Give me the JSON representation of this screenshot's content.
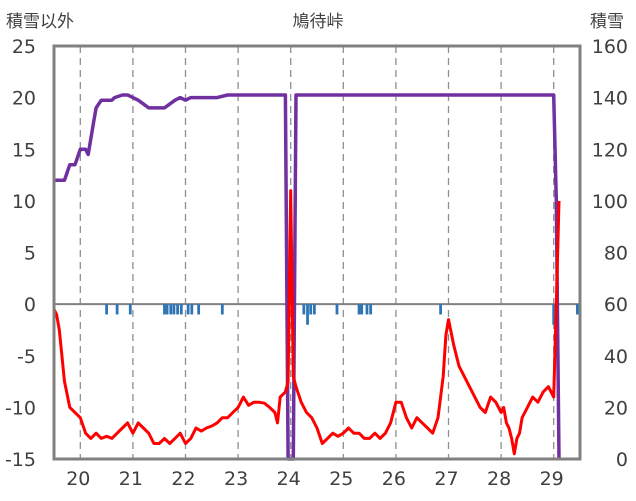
{
  "chart_data": {
    "type": "line",
    "title": "鳩待峠",
    "ylabel_left": "積雪以外",
    "ylabel_right": "積雪",
    "xlim": [
      19.5,
      29.5
    ],
    "ylim_left": [
      -15,
      25
    ],
    "ylim_right": [
      0,
      160
    ],
    "x_ticks": [
      20,
      21,
      22,
      23,
      24,
      25,
      26,
      27,
      28,
      29
    ],
    "y_ticks_left": [
      25,
      20,
      15,
      10,
      5,
      0,
      -5,
      -10,
      -15
    ],
    "y_ticks_right": [
      160,
      140,
      120,
      100,
      80,
      60,
      40,
      20,
      0
    ],
    "grid": "dashed vertical",
    "colors": {
      "snow_depth": "#7030A0",
      "temperature": "#FF0000",
      "precipitation": "#2E75B6",
      "frame": "#808080"
    },
    "series": [
      {
        "axis": "right",
        "color": "#7030A0",
        "x": [
          19.5,
          19.7,
          19.8,
          19.9,
          20.0,
          20.1,
          20.15,
          20.25,
          20.3,
          20.4,
          20.5,
          20.6,
          20.65,
          20.8,
          20.9,
          21.0,
          21.1,
          21.3,
          21.4,
          21.6,
          21.8,
          21.9,
          22.0,
          22.1,
          22.3,
          22.5,
          22.6,
          22.8,
          23.0,
          23.5,
          23.9,
          23.95,
          24.0,
          24.05,
          24.1,
          24.15,
          24.5,
          25.0,
          26.0,
          27.0,
          28.0,
          29.0,
          29.05,
          29.1
        ],
        "values": [
          108,
          108,
          114,
          114,
          120,
          120,
          118,
          130,
          136,
          139,
          139,
          139,
          140,
          141,
          141,
          140,
          139,
          136,
          136,
          136,
          139,
          140,
          139,
          140,
          140,
          140,
          140,
          141,
          141,
          141,
          141,
          0,
          0,
          0,
          141,
          141,
          141,
          141,
          141,
          141,
          141,
          141,
          100,
          0
        ]
      },
      {
        "axis": "left",
        "color": "#FF0000",
        "x": [
          19.5,
          19.55,
          19.6,
          19.7,
          19.8,
          19.9,
          20.0,
          20.1,
          20.2,
          20.3,
          20.4,
          20.5,
          20.6,
          20.7,
          20.8,
          20.9,
          21.0,
          21.1,
          21.2,
          21.3,
          21.4,
          21.5,
          21.6,
          21.7,
          21.8,
          21.9,
          22.0,
          22.1,
          22.2,
          22.3,
          22.4,
          22.5,
          22.6,
          22.7,
          22.8,
          22.9,
          23.0,
          23.1,
          23.2,
          23.3,
          23.4,
          23.5,
          23.6,
          23.7,
          23.75,
          23.8,
          23.9,
          23.95,
          24.0,
          24.05,
          24.1,
          24.2,
          24.3,
          24.4,
          24.5,
          24.6,
          24.7,
          24.8,
          24.9,
          25.0,
          25.1,
          25.2,
          25.3,
          25.4,
          25.5,
          25.6,
          25.7,
          25.8,
          25.9,
          26.0,
          26.1,
          26.2,
          26.3,
          26.4,
          26.5,
          26.6,
          26.7,
          26.8,
          26.9,
          26.95,
          27.0,
          27.1,
          27.2,
          27.3,
          27.4,
          27.5,
          27.6,
          27.7,
          27.8,
          27.9,
          28.0,
          28.05,
          28.1,
          28.15,
          28.2,
          28.25,
          28.3,
          28.35,
          28.4,
          28.5,
          28.6,
          28.7,
          28.8,
          28.9,
          29.0,
          29.05,
          29.1
        ],
        "values": [
          -0.5,
          -1.0,
          -2.5,
          -7.5,
          -10.0,
          -10.5,
          -11.0,
          -12.5,
          -13.0,
          -12.5,
          -13.0,
          -12.8,
          -13.0,
          -12.5,
          -12.0,
          -11.5,
          -12.5,
          -11.5,
          -12.0,
          -12.5,
          -13.5,
          -13.5,
          -13.0,
          -13.5,
          -13.0,
          -12.5,
          -13.5,
          -13.0,
          -12.0,
          -12.3,
          -12.0,
          -11.8,
          -11.5,
          -11.0,
          -11.0,
          -10.5,
          -10.0,
          -9.0,
          -9.8,
          -9.5,
          -9.5,
          -9.6,
          -10.0,
          -10.5,
          -11.5,
          -9.0,
          -8.5,
          -7.5,
          11.0,
          -7.0,
          -8.0,
          -9.5,
          -10.5,
          -11.0,
          -12.0,
          -13.5,
          -13.0,
          -12.5,
          -12.8,
          -12.5,
          -12.0,
          -12.5,
          -12.5,
          -13.0,
          -13.0,
          -12.5,
          -13.0,
          -12.5,
          -11.5,
          -9.5,
          -9.5,
          -11.0,
          -12.0,
          -11.0,
          -11.5,
          -12.0,
          -12.5,
          -11.0,
          -7.0,
          -3.0,
          -1.5,
          -4.0,
          -6.0,
          -7.0,
          -8.0,
          -9.0,
          -10.0,
          -10.5,
          -9.0,
          -9.5,
          -10.5,
          -10.0,
          -11.5,
          -12.0,
          -13.0,
          -14.5,
          -13.0,
          -12.5,
          -11.0,
          -10.0,
          -9.0,
          -9.5,
          -8.5,
          -8.0,
          -9.0,
          0.0,
          10.0
        ]
      },
      {
        "axis": "left",
        "color": "#2E75B6",
        "x": [
          20.5,
          20.7,
          20.95,
          21.6,
          21.65,
          21.72,
          21.78,
          21.85,
          21.92,
          22.05,
          22.12,
          22.25,
          22.7,
          24.25,
          24.32,
          24.38,
          24.45,
          24.88,
          25.3,
          25.35,
          25.45,
          25.52,
          26.85,
          29.0,
          29.05,
          29.45
        ],
        "values": [
          -1.0,
          -1.0,
          -1.0,
          -1.0,
          -1.0,
          -1.0,
          -1.0,
          -1.0,
          -1.0,
          -1.0,
          -1.0,
          -1.0,
          -1.0,
          -1.0,
          -2.0,
          -1.0,
          -1.0,
          -1.0,
          -1.0,
          -1.0,
          -1.0,
          -1.0,
          -1.0,
          -2.0,
          -1.0,
          -1.0
        ]
      }
    ]
  }
}
